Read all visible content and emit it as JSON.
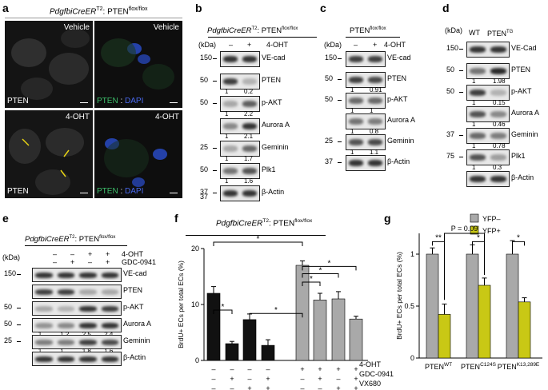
{
  "panel_a": {
    "letter": "a",
    "title_gene": "PdgfbiCreER",
    "title_sup": "T2",
    "title_rest": ": PTEN",
    "title_flox": "flox/flox",
    "vehicle": "Vehicle",
    "ohT": "4-OHT",
    "pten": "PTEN",
    "dapi": "DAPI",
    "sep": " : "
  },
  "panel_b": {
    "letter": "b",
    "title_gene": "PdgfbiCreER",
    "title_sup": "T2",
    "title_rest": ": PTEN",
    "title_flox": "flox/flox",
    "kda": "(kDa)",
    "minus": "–",
    "plus": "+",
    "treat": "4-OHT",
    "rows": [
      {
        "label": "VE-cad",
        "mw": "150",
        "q": [
          "",
          ""
        ]
      },
      {
        "label": "PTEN",
        "mw": "50",
        "q": [
          "1",
          "0.2"
        ]
      },
      {
        "label": "p-AKT",
        "mw": "50",
        "q": [
          "1",
          "2.2"
        ]
      },
      {
        "label": "Aurora A",
        "mw": "",
        "q": [
          "1",
          "2.1"
        ]
      },
      {
        "label": "Geminin",
        "mw": "25",
        "q": [
          "1",
          "1.7"
        ]
      },
      {
        "label": "Plk1",
        "mw": "50",
        "q": [
          "1",
          "1.6"
        ]
      },
      {
        "label": "β-Actin",
        "mw": "37",
        "q": [
          "",
          ""
        ]
      }
    ],
    "mw_extra": "37"
  },
  "panel_c": {
    "letter": "c",
    "title": "PTEN",
    "title_flox": "flox/flox",
    "kda": "(kDa)",
    "minus": "–",
    "plus": "+",
    "treat": "4-OHT",
    "rows": [
      {
        "label": "VE-cad",
        "mw": "150",
        "q": [
          "",
          ""
        ]
      },
      {
        "label": "PTEN",
        "mw": "50",
        "q": [
          "1",
          "0.91"
        ]
      },
      {
        "label": "p-AKT",
        "mw": "50",
        "q": [
          "1",
          "1"
        ]
      },
      {
        "label": "Aurora A",
        "mw": "",
        "q": [
          "1",
          "0.8"
        ]
      },
      {
        "label": "Geminin",
        "mw": "25",
        "q": [
          "1",
          "1.1"
        ]
      },
      {
        "label": "β-Actin",
        "mw": "37",
        "q": [
          "",
          ""
        ]
      }
    ]
  },
  "panel_d": {
    "letter": "d",
    "kda": "(kDa)",
    "wt": "WT",
    "tg": "PTEN",
    "tg_sup": "TG",
    "rows": [
      {
        "label": "VE-Cad",
        "mw": "150",
        "q": [
          "",
          ""
        ]
      },
      {
        "label": "PTEN",
        "mw": "50",
        "q": [
          "1",
          "1.98"
        ]
      },
      {
        "label": "p-AKT",
        "mw": "50",
        "q": [
          "1",
          "0.15"
        ]
      },
      {
        "label": "Aurora A",
        "mw": "",
        "q": [
          "1",
          "0.46"
        ]
      },
      {
        "label": "Geminin",
        "mw": "37",
        "q": [
          "1",
          "0.78"
        ]
      },
      {
        "label": "Plk1",
        "mw": "75",
        "q": [
          "1",
          "0.3"
        ]
      },
      {
        "label": "β-Actin",
        "mw": "",
        "q": [
          "",
          ""
        ]
      }
    ],
    "mw_mid": [
      "50",
      "25"
    ]
  },
  "panel_e": {
    "letter": "e",
    "title_gene": "PdgfbiCreER",
    "title_sup": "T2",
    "title_rest": ": PTEN",
    "title_flox": "flox/flox",
    "kda": "(kDa)",
    "row1": [
      "–",
      "–",
      "+",
      "+"
    ],
    "row2": [
      "–",
      "+",
      "–",
      "+"
    ],
    "treat1": "4-OHT",
    "treat2": "GDC-0941",
    "rows": [
      {
        "label": "VE-cad",
        "mw": "150",
        "q": []
      },
      {
        "label": "PTEN",
        "mw": "",
        "q": []
      },
      {
        "label": "p-AKT",
        "mw": "50",
        "q": []
      },
      {
        "label": "Aurora A",
        "mw": "50",
        "q": [
          "1",
          "1.2",
          "2.5",
          "2.4"
        ]
      },
      {
        "label": "Geminin",
        "mw": "25",
        "q": [
          "1",
          "1",
          "1.8",
          "1.6"
        ]
      },
      {
        "label": "β-Actin",
        "mw": "",
        "q": []
      }
    ],
    "mw_extra": "75"
  },
  "panel_f": {
    "letter": "f",
    "title_gene": "PdgfbiCreER",
    "title_sup": "T2",
    "title_rest": ": PTEN",
    "title_flox": "flox/flox",
    "ylabel": "BrdU+ ECs per total ECs (%)",
    "star": "*",
    "treat": [
      "4-OHT",
      "GDC-0941",
      "VX680"
    ],
    "signs": [
      [
        "–",
        "–",
        "–",
        "–",
        "+",
        "+",
        "+",
        "+"
      ],
      [
        "–",
        "+",
        "–",
        "+",
        "–",
        "+",
        "–",
        "+"
      ],
      [
        "–",
        "–",
        "+",
        "+",
        "–",
        "–",
        "+",
        "+"
      ]
    ]
  },
  "panel_g": {
    "letter": "g",
    "ylabel": "BrdU+ ECs per total ECs (%)",
    "legend": [
      "YFP–",
      "YFP+"
    ],
    "pval": "P = 0.09",
    "sig": [
      "**",
      "*",
      "*"
    ],
    "groups": [
      "PTEN",
      "PTEN",
      "PTEN"
    ],
    "group_sup": [
      "WT",
      "C124S",
      "K13,289E"
    ]
  },
  "colors": {
    "black": "#111111",
    "gray": "#a9a9a9",
    "yellow": "#c9c815",
    "micro": "#0e0e0e",
    "dapi": "#2040c0",
    "pten_green": "#3dbd6a"
  },
  "chart_data": [
    {
      "type": "bar",
      "panel": "f",
      "categories": [
        "1",
        "2",
        "3",
        "4",
        "5",
        "6",
        "7",
        "8"
      ],
      "series": [
        {
          "values": [
            12.0,
            3.0,
            7.3,
            2.7,
            17.0,
            10.8,
            11.0,
            7.4
          ]
        }
      ],
      "errors": [
        1.2,
        0.4,
        1.0,
        1.0,
        0.8,
        1.2,
        1.3,
        0.5
      ],
      "ylim": [
        0,
        20
      ],
      "yticks": [
        "0",
        "10",
        "20"
      ],
      "ylabel": "BrdU+ ECs per total ECs (%)"
    },
    {
      "type": "bar",
      "panel": "g",
      "categories": [
        "PTEN WT",
        "PTEN C124S",
        "PTEN K13,289E"
      ],
      "series": [
        {
          "name": "YFP–",
          "values": [
            1.0,
            1.0,
            1.0
          ]
        },
        {
          "name": "YFP+",
          "values": [
            0.42,
            0.7,
            0.54
          ]
        }
      ],
      "errors": [
        [
          0.06,
          0.09,
          0.13
        ],
        [
          0.1,
          0.07,
          0.04
        ]
      ],
      "ylim": [
        0,
        1.2
      ],
      "yticks": [
        "0",
        "0.5",
        "1"
      ],
      "ylabel": "BrdU+ ECs per total ECs (%)"
    }
  ]
}
